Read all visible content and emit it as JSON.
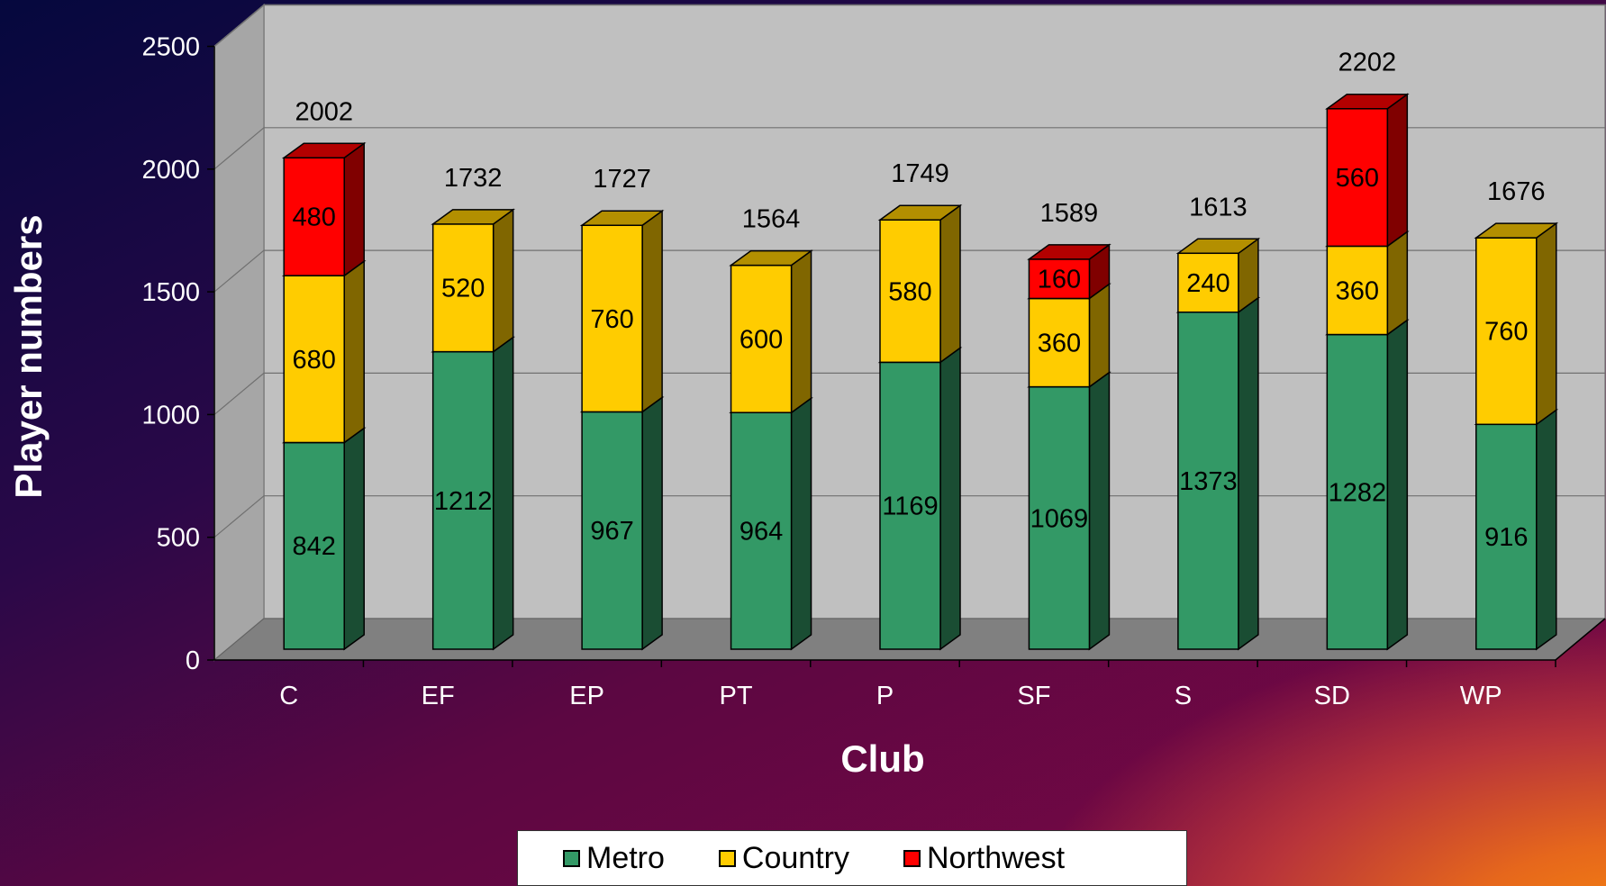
{
  "chart_data": {
    "type": "bar",
    "stacked": true,
    "three_d": true,
    "title": "",
    "xlabel": "Club",
    "ylabel": "Player numbers",
    "ylim": [
      0,
      2500
    ],
    "yticks": [
      0,
      500,
      1000,
      1500,
      2000,
      2500
    ],
    "grid": true,
    "legend_position": "bottom",
    "categories": [
      "C",
      "EF",
      "EP",
      "PT",
      "P",
      "SF",
      "S",
      "SD",
      "WP"
    ],
    "series": [
      {
        "name": "Metro",
        "color": "#339966",
        "values": [
          842,
          1212,
          967,
          964,
          1169,
          1069,
          1373,
          1282,
          916
        ]
      },
      {
        "name": "Country",
        "color": "#FFCC00",
        "values": [
          680,
          520,
          760,
          600,
          580,
          360,
          240,
          360,
          760
        ]
      },
      {
        "name": "Northwest",
        "color": "#FF0000",
        "values": [
          480,
          null,
          null,
          null,
          null,
          160,
          null,
          560,
          null
        ]
      }
    ],
    "totals": [
      2002,
      1732,
      1727,
      1564,
      1749,
      1589,
      1613,
      2202,
      1676
    ]
  }
}
